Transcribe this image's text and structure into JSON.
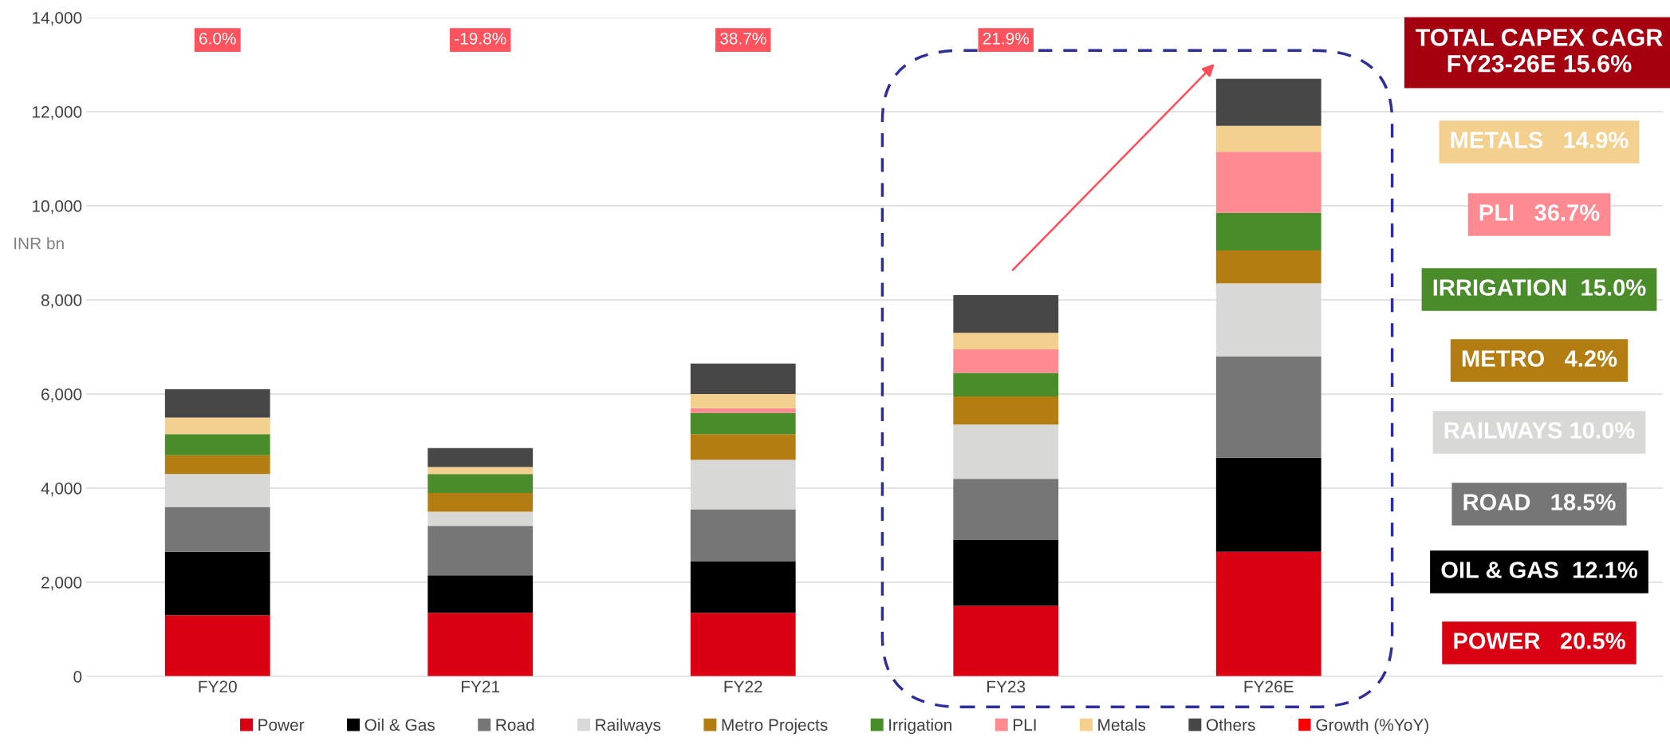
{
  "chart_data": {
    "type": "bar",
    "stacked": true,
    "ylabel": "INR bn",
    "categories": [
      "FY20",
      "FY21",
      "FY22",
      "FY23",
      "FY26E"
    ],
    "series": [
      {
        "name": "Power",
        "color": "#d90012",
        "values": [
          1300,
          1350,
          1350,
          1500,
          2650
        ]
      },
      {
        "name": "Oil & Gas",
        "color": "#000000",
        "values": [
          1350,
          800,
          1100,
          1400,
          2000
        ]
      },
      {
        "name": "Road",
        "color": "#767676",
        "values": [
          950,
          1050,
          1100,
          1300,
          2150
        ]
      },
      {
        "name": "Railways",
        "color": "#d8d8d6",
        "values": [
          700,
          300,
          1050,
          1150,
          1550
        ]
      },
      {
        "name": "Metro Projects",
        "color": "#b37d12",
        "values": [
          400,
          400,
          550,
          600,
          700
        ]
      },
      {
        "name": "Irrigation",
        "color": "#4a8c2a",
        "values": [
          450,
          400,
          450,
          500,
          800
        ]
      },
      {
        "name": "PLI",
        "color": "#ff8a92",
        "values": [
          0,
          0,
          100,
          500,
          1300
        ]
      },
      {
        "name": "Metals",
        "color": "#f4d08e",
        "values": [
          350,
          150,
          300,
          350,
          550
        ]
      },
      {
        "name": "Others",
        "color": "#474747",
        "values": [
          600,
          400,
          650,
          800,
          1000
        ]
      },
      {
        "name": "Growth (%YoY)",
        "type": "scatter",
        "marker": "square",
        "color": "#ff0000",
        "values": [
          null,
          null,
          null,
          null,
          null
        ],
        "value_labels": [
          "6.0%",
          "-19.8%",
          "38.7%",
          "21.9%",
          null
        ]
      }
    ],
    "ylim": [
      0,
      14000
    ],
    "yticks": [
      {
        "value": 0,
        "label": "0"
      },
      {
        "value": 2000,
        "label": "2,000"
      },
      {
        "value": 4000,
        "label": "4,000"
      },
      {
        "value": 6000,
        "label": "6,000"
      },
      {
        "value": 8000,
        "label": "8,000"
      },
      {
        "value": 10000,
        "label": "10,000"
      },
      {
        "value": 12000,
        "label": "12,000"
      },
      {
        "value": 14000,
        "label": "14,000"
      }
    ],
    "grid": "y",
    "legend": "bottom",
    "annotations": [
      "TOTAL CAPEX CAGR\nFY23-26E 15.6%",
      "METALS   14.9%",
      "PLI   36.7%",
      "IRRIGATION  15.0%",
      "METRO   4.2%",
      "RAILWAYS 10.0%",
      "ROAD   18.5%",
      "OIL & GAS  12.1%",
      "POWER   20.5%"
    ]
  }
}
